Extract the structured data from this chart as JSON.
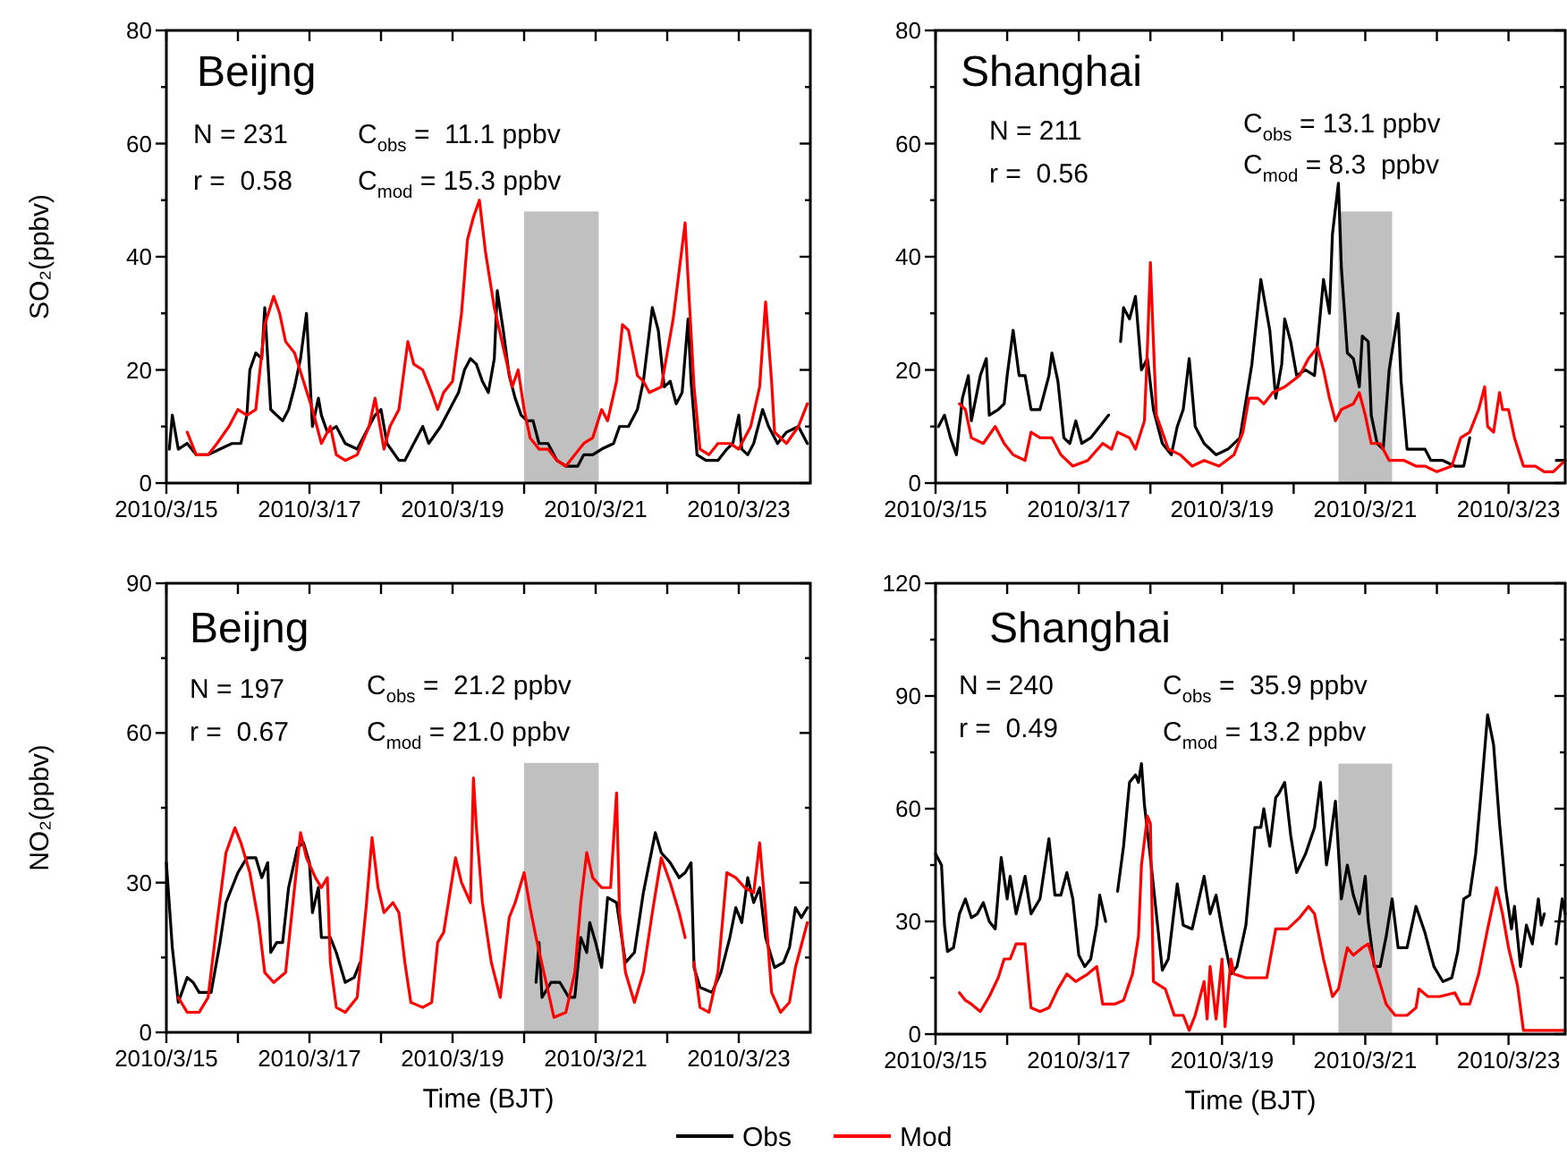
{
  "chart_data": [
    {
      "type": "line",
      "title": "Beijng",
      "ylabel": "SO₂(ppbv)",
      "annotations": [
        "N = 231",
        "r =  0.58",
        "C$_{obs}$ =  11.1 ppbv",
        "C$_{mod}$ = 15.3 ppbv"
      ],
      "xlim": [
        "2010-03-15",
        "2010-03-24"
      ],
      "xticks": [
        {
          "value": "2010-03-15",
          "label": "2010/3/15"
        },
        {
          "value": "2010-03-16",
          "label": null
        },
        {
          "value": "2010-03-17",
          "label": "2010/3/17"
        },
        {
          "value": "2010-03-18",
          "label": null
        },
        {
          "value": "2010-03-19",
          "label": "2010/3/19"
        },
        {
          "value": "2010-03-20",
          "label": null
        },
        {
          "value": "2010-03-21",
          "label": "2010/3/21"
        },
        {
          "value": "2010-03-22",
          "label": null
        },
        {
          "value": "2010-03-23",
          "label": "2010/3/23"
        }
      ],
      "ylim": [
        0,
        80
      ],
      "yticks": [
        0,
        {
          "value": 10,
          "label": null
        },
        20,
        {
          "value": 30,
          "label": null
        },
        40,
        {
          "value": 50,
          "label": null
        },
        60,
        {
          "value": 70,
          "label": null
        },
        80
      ],
      "bands": [
        {
          "axis": "x",
          "from": "2010-03-20T00:00",
          "to": "2010-03-21T01:00",
          "color": "#c0c0c0"
        }
      ],
      "series": [
        {
          "color": "#000000",
          "x": [
            "2010-03-15T01:00",
            "2010-03-15T02:00",
            "2010-03-15T04:00",
            "2010-03-15T07:00",
            "2010-03-15T10:00",
            "2010-03-15T14:00",
            "2010-03-15T18:00",
            "2010-03-15T22:00",
            "2010-03-16T01:00",
            "2010-03-16T03:00",
            "2010-03-16T04:00",
            "2010-03-16T06:00",
            "2010-03-16T08:00",
            "2010-03-16T09:00",
            "2010-03-16T10:00",
            "2010-03-16T11:00",
            "2010-03-16T13:00",
            "2010-03-16T15:00",
            "2010-03-16T17:00",
            "2010-03-16T19:00",
            "2010-03-16T21:00",
            "2010-03-16T23:00",
            "2010-03-17T00:00",
            "2010-03-17T01:00",
            "2010-03-17T03:00",
            "2010-03-17T04:00",
            "2010-03-17T06:00",
            "2010-03-17T09:00",
            "2010-03-17T12:00",
            "2010-03-17T16:00",
            "2010-03-17T19:00",
            "2010-03-17T22:00",
            "2010-03-18T00:00",
            "2010-03-18T02:00",
            "2010-03-18T06:00",
            "2010-03-18T08:00",
            "2010-03-18T10:00",
            "2010-03-18T14:00",
            "2010-03-18T16:00",
            "2010-03-18T20:00",
            "2010-03-18T23:00",
            "2010-03-19T02:00",
            "2010-03-19T04:00",
            "2010-03-19T06:00",
            "2010-03-19T08:00",
            "2010-03-19T10:00",
            "2010-03-19T12:00",
            "2010-03-19T14:00",
            "2010-03-19T15:00",
            "2010-03-19T17:00",
            "2010-03-19T19:00",
            "2010-03-19T21:00",
            "2010-03-19T23:00",
            "2010-03-20T01:00",
            "2010-03-20T03:00",
            "2010-03-20T05:00",
            "2010-03-20T08:00",
            "2010-03-20T11:00",
            "2010-03-20T14:00",
            "2010-03-20T18:00",
            "2010-03-20T20:00",
            "2010-03-20T23:00",
            "2010-03-21T02:00",
            "2010-03-21T06:00",
            "2010-03-21T08:00",
            "2010-03-21T11:00",
            "2010-03-21T14:00",
            "2010-03-21T16:00",
            "2010-03-21T19:00",
            "2010-03-21T21:00",
            "2010-03-21T23:00",
            "2010-03-22T01:00",
            "2010-03-22T03:00",
            "2010-03-22T05:00",
            "2010-03-22T07:00",
            "2010-03-22T08:00",
            "2010-03-22T10:00",
            "2010-03-22T13:00",
            "2010-03-22T17:00",
            "2010-03-22T20:00",
            "2010-03-22T22:00",
            "2010-03-23T00:00",
            "2010-03-23T01:00",
            "2010-03-23T03:00",
            "2010-03-23T05:00",
            "2010-03-23T08:00",
            "2010-03-23T10:00",
            "2010-03-23T13:00",
            "2010-03-23T16:00",
            "2010-03-23T20:00",
            "2010-03-23T23:00"
          ],
          "values": [
            6,
            12,
            6,
            7,
            5,
            5,
            6,
            7,
            7,
            12,
            20,
            23,
            22,
            31,
            22,
            13,
            12,
            11,
            13,
            17,
            22,
            30,
            20,
            10,
            15,
            12,
            9,
            10,
            7,
            6,
            9,
            12,
            13,
            7,
            4,
            4,
            6,
            10,
            7,
            10,
            13,
            16,
            20,
            22,
            21,
            18,
            16,
            22,
            34,
            27,
            19,
            15,
            12,
            11,
            11,
            7,
            7,
            4,
            3,
            3,
            5,
            5,
            6,
            7,
            10,
            10,
            13,
            18,
            31,
            27,
            17,
            18,
            14,
            16,
            29,
            18,
            5,
            4,
            4,
            6,
            7,
            12,
            6,
            5,
            7,
            13,
            10,
            7,
            9,
            10,
            7
          ]
        },
        {
          "color": "#ff0000",
          "x": [
            "2010-03-15T07:00",
            "2010-03-15T10:00",
            "2010-03-15T14:00",
            "2010-03-15T17:00",
            "2010-03-15T21:00",
            "2010-03-16T00:00",
            "2010-03-16T03:00",
            "2010-03-16T06:00",
            "2010-03-16T09:00",
            "2010-03-16T12:00",
            "2010-03-16T14:00",
            "2010-03-16T16:00",
            "2010-03-16T19:00",
            "2010-03-16T22:00",
            "2010-03-17T01:00",
            "2010-03-17T04:00",
            "2010-03-17T07:00",
            "2010-03-17T09:00",
            "2010-03-17T12:00",
            "2010-03-17T16:00",
            "2010-03-17T20:00",
            "2010-03-17T22:00",
            "2010-03-17T23:00",
            "2010-03-18T01:00",
            "2010-03-18T03:00",
            "2010-03-18T06:00",
            "2010-03-18T09:00",
            "2010-03-18T11:00",
            "2010-03-18T14:00",
            "2010-03-18T17:00",
            "2010-03-18T19:00",
            "2010-03-18T21:00",
            "2010-03-19T00:00",
            "2010-03-19T03:00",
            "2010-03-19T05:00",
            "2010-03-19T07:00",
            "2010-03-19T09:00",
            "2010-03-19T11:00",
            "2010-03-19T14:00",
            "2010-03-19T17:00",
            "2010-03-19T20:00",
            "2010-03-19T22:00",
            "2010-03-20T00:00",
            "2010-03-20T02:00",
            "2010-03-20T05:00",
            "2010-03-20T08:00",
            "2010-03-20T11:00",
            "2010-03-20T14:00",
            "2010-03-20T17:00",
            "2010-03-20T20:00",
            "2010-03-20T23:00",
            "2010-03-21T02:00",
            "2010-03-21T04:00",
            "2010-03-21T07:00",
            "2010-03-21T09:00",
            "2010-03-21T11:00",
            "2010-03-21T14:00",
            "2010-03-21T16:00",
            "2010-03-21T18:00",
            "2010-03-21T22:00",
            "2010-03-22T02:00",
            "2010-03-22T06:00",
            "2010-03-22T07:00",
            "2010-03-22T09:00",
            "2010-03-22T11:00",
            "2010-03-22T14:00",
            "2010-03-22T17:00",
            "2010-03-22T21:00",
            "2010-03-23T00:00",
            "2010-03-23T04:00",
            "2010-03-23T07:00",
            "2010-03-23T09:00",
            "2010-03-23T11:00",
            "2010-03-23T12:00",
            "2010-03-23T16:00",
            "2010-03-23T20:00",
            "2010-03-23T23:00"
          ],
          "values": [
            9,
            5,
            5,
            7,
            10,
            13,
            12,
            13,
            28,
            33,
            30,
            25,
            23,
            18,
            13,
            7,
            10,
            5,
            4,
            5,
            10,
            15,
            12,
            6,
            10,
            13,
            25,
            21,
            20,
            16,
            13,
            16,
            18,
            30,
            43,
            47,
            50,
            41,
            31,
            24,
            17,
            20,
            13,
            8,
            6,
            6,
            4,
            3,
            5,
            7,
            8,
            13,
            11,
            18,
            28,
            27,
            19,
            18,
            16,
            17,
            29,
            46,
            36,
            17,
            6,
            5,
            7,
            7,
            6,
            10,
            17,
            32,
            18,
            9,
            7,
            10,
            14
          ]
        }
      ]
    },
    {
      "type": "line",
      "title": "Shanghai",
      "annotations": [
        "N = 211",
        "r =  0.56",
        "C$_{obs}$ = 13.1 ppbv",
        "C$_{mod}$ = 8.3  ppbv"
      ],
      "xlim": [
        "2010-03-15",
        "2010-03-23T19:00"
      ],
      "xticks": [
        {
          "value": "2010-03-15",
          "label": "2010/3/15"
        },
        {
          "value": "2010-03-16",
          "label": null
        },
        {
          "value": "2010-03-17",
          "label": "2010/3/17"
        },
        {
          "value": "2010-03-18",
          "label": null
        },
        {
          "value": "2010-03-19",
          "label": "2010/3/19"
        },
        {
          "value": "2010-03-20",
          "label": null
        },
        {
          "value": "2010-03-21",
          "label": "2010/3/21"
        },
        {
          "value": "2010-03-22",
          "label": null
        },
        {
          "value": "2010-03-23",
          "label": "2010/3/23"
        }
      ],
      "ylim": [
        0,
        80
      ],
      "yticks": [
        0,
        {
          "value": 10,
          "label": null
        },
        20,
        {
          "value": 30,
          "label": null
        },
        40,
        {
          "value": 50,
          "label": null
        },
        60,
        {
          "value": 70,
          "label": null
        },
        80
      ],
      "bands": [
        {
          "axis": "x",
          "from": "2010-03-20T15:00",
          "to": "2010-03-21T09:00",
          "color": "#c0c0c0"
        }
      ],
      "series": [
        {
          "color": "#000000",
          "x": [
            "2010-03-15T01:00",
            "2010-03-15T03:00",
            "2010-03-15T05:00",
            "2010-03-15T07:00",
            "2010-03-15T09:00",
            "2010-03-15T11:00",
            "2010-03-15T12:00",
            "2010-03-15T15:00",
            "2010-03-15T17:00",
            "2010-03-15T18:00",
            "2010-03-15T21:00",
            "2010-03-15T23:00",
            "2010-03-16T00:00",
            "2010-03-16T02:00",
            "2010-03-16T04:00",
            "2010-03-16T06:00",
            "2010-03-16T08:00",
            "2010-03-16T11:00",
            "2010-03-16T14:00",
            "2010-03-16T15:00",
            "2010-03-16T17:00",
            "2010-03-16T19:00",
            "2010-03-16T21:00",
            "2010-03-16T23:00",
            "2010-03-17T01:00",
            "2010-03-17T04:00",
            "2010-03-17T07:00",
            "2010-03-17T10:00",
            "2010-03-17T12:00",
            "2010-03-17T14:00",
            "2010-03-17T15:00",
            "2010-03-17T17:00",
            "2010-03-17T19:00",
            "2010-03-17T21:00",
            "2010-03-17T23:00",
            "2010-03-18T01:00",
            "2010-03-18T04:00",
            "2010-03-18T07:00",
            "2010-03-18T09:00",
            "2010-03-18T11:00",
            "2010-03-18T13:00",
            "2010-03-18T15:00",
            "2010-03-18T18:00",
            "2010-03-18T22:00",
            "2010-03-19T02:00",
            "2010-03-19T06:00",
            "2010-03-19T10:00",
            "2010-03-19T13:00",
            "2010-03-19T16:00",
            "2010-03-19T18:00",
            "2010-03-19T20:00",
            "2010-03-19T21:00",
            "2010-03-19T23:00",
            "2010-03-20T01:00",
            "2010-03-20T04:00",
            "2010-03-20T07:00",
            "2010-03-20T10:00",
            "2010-03-20T12:00",
            "2010-03-20T13:00",
            "2010-03-20T15:00",
            "2010-03-20T16:00",
            "2010-03-20T18:00",
            "2010-03-20T20:00",
            "2010-03-20T22:00",
            "2010-03-20T23:00",
            "2010-03-21T01:00",
            "2010-03-21T02:00",
            "2010-03-21T04:00",
            "2010-03-21T06:00",
            "2010-03-21T08:00",
            "2010-03-21T11:00",
            "2010-03-21T12:00",
            "2010-03-21T14:00",
            "2010-03-21T17:00",
            "2010-03-21T20:00",
            "2010-03-21T22:00",
            "2010-03-22T02:00",
            "2010-03-22T06:00",
            "2010-03-22T09:00",
            "2010-03-22T11:00",
            "2010-03-22T22:00",
            "2010-03-23T16:00",
            "2010-03-23T19:00"
          ],
          "values": [
            10,
            12,
            8,
            5,
            15,
            19,
            11,
            19,
            22,
            12,
            13,
            14,
            19,
            27,
            19,
            19,
            13,
            13,
            19,
            23,
            18,
            8,
            7,
            11,
            7,
            8,
            10,
            12,
            null,
            25,
            31,
            29,
            33,
            20,
            22,
            13,
            7,
            5,
            10,
            13,
            22,
            10,
            7,
            5,
            6,
            8,
            21,
            36,
            27,
            15,
            21,
            29,
            25,
            19,
            20,
            19,
            36,
            30,
            44,
            53,
            38,
            23,
            22,
            17,
            26,
            25,
            12,
            7,
            6,
            20,
            30,
            18,
            6,
            6,
            6,
            4,
            4,
            3,
            3,
            8,
            null,
            4,
            4
          ]
        },
        {
          "color": "#ff0000",
          "x": [
            "2010-03-15T08:00",
            "2010-03-15T10:00",
            "2010-03-15T12:00",
            "2010-03-15T16:00",
            "2010-03-15T20:00",
            "2010-03-15T23:00",
            "2010-03-16T02:00",
            "2010-03-16T06:00",
            "2010-03-16T08:00",
            "2010-03-16T11:00",
            "2010-03-16T15:00",
            "2010-03-16T18:00",
            "2010-03-16T22:00",
            "2010-03-17T03:00",
            "2010-03-17T08:00",
            "2010-03-17T11:00",
            "2010-03-17T13:00",
            "2010-03-17T17:00",
            "2010-03-17T19:00",
            "2010-03-17T22:00",
            "2010-03-17T23:00",
            "2010-03-18T00:00",
            "2010-03-18T01:00",
            "2010-03-18T02:00",
            "2010-03-18T06:00",
            "2010-03-18T10:00",
            "2010-03-18T14:00",
            "2010-03-18T18:00",
            "2010-03-18T23:00",
            "2010-03-19T04:00",
            "2010-03-19T07:00",
            "2010-03-19T09:00",
            "2010-03-19T12:00",
            "2010-03-19T14:00",
            "2010-03-19T17:00",
            "2010-03-19T21:00",
            "2010-03-20T02:00",
            "2010-03-20T05:00",
            "2010-03-20T08:00",
            "2010-03-20T10:00",
            "2010-03-20T12:00",
            "2010-03-20T14:00",
            "2010-03-20T16:00",
            "2010-03-20T20:00",
            "2010-03-20T22:00",
            "2010-03-21T00:00",
            "2010-03-21T02:00",
            "2010-03-21T05:00",
            "2010-03-21T08:00",
            "2010-03-21T13:00",
            "2010-03-21T17:00",
            "2010-03-21T20:00",
            "2010-03-22T00:00",
            "2010-03-22T05:00",
            "2010-03-22T08:00",
            "2010-03-22T11:00",
            "2010-03-22T14:00",
            "2010-03-22T16:00",
            "2010-03-22T17:00",
            "2010-03-22T19:00",
            "2010-03-22T21:00",
            "2010-03-22T22:00",
            "2010-03-23T00:00",
            "2010-03-23T02:00",
            "2010-03-23T05:00",
            "2010-03-23T09:00",
            "2010-03-23T12:00",
            "2010-03-23T15:00",
            "2010-03-23T19:00"
          ],
          "values": [
            14,
            13,
            8,
            7,
            10,
            7,
            5,
            4,
            9,
            8,
            8,
            5,
            3,
            4,
            7,
            6,
            9,
            8,
            6,
            11,
            24,
            39,
            25,
            12,
            6,
            5,
            3,
            4,
            3,
            5,
            9,
            15,
            15,
            14,
            16,
            17,
            19,
            22,
            24,
            20,
            15,
            11,
            13,
            14,
            16,
            12,
            7,
            7,
            4,
            4,
            3,
            3,
            2,
            3,
            8,
            9,
            13,
            17,
            10,
            9,
            16,
            13,
            13,
            8,
            3,
            3,
            2,
            2,
            4
          ]
        }
      ]
    },
    {
      "type": "line",
      "title": "Beijng",
      "ylabel": "NO₂(ppbv)",
      "xlabel": "Time (BJT)",
      "legend": "bottom",
      "annotations": [
        "N = 197",
        "r =  0.67",
        "C$_{obs}$ =  21.2 ppbv",
        "C$_{mod}$ = 21.0 ppbv"
      ],
      "xlim": [
        "2010-03-15",
        "2010-03-24"
      ],
      "xticks": [
        {
          "value": "2010-03-15",
          "label": "2010/3/15"
        },
        {
          "value": "2010-03-16",
          "label": null
        },
        {
          "value": "2010-03-17",
          "label": "2010/3/17"
        },
        {
          "value": "2010-03-18",
          "label": null
        },
        {
          "value": "2010-03-19",
          "label": "2010/3/19"
        },
        {
          "value": "2010-03-20",
          "label": null
        },
        {
          "value": "2010-03-21",
          "label": "2010/3/21"
        },
        {
          "value": "2010-03-22",
          "label": null
        },
        {
          "value": "2010-03-23",
          "label": "2010/3/23"
        }
      ],
      "ylim": [
        0,
        90
      ],
      "yticks": [
        0,
        {
          "value": 15,
          "label": null
        },
        30,
        {
          "value": 45,
          "label": null
        },
        60,
        {
          "value": 75,
          "label": null
        },
        90
      ],
      "bands": [
        {
          "axis": "x",
          "from": "2010-03-20T00:00",
          "to": "2010-03-21T01:00",
          "color": "#c0c0c0"
        }
      ],
      "series": [
        {
          "name": "Obs",
          "color": "#000000",
          "x": [
            "2010-03-15T00:00",
            "2010-03-15T02:00",
            "2010-03-15T04:00",
            "2010-03-15T07:00",
            "2010-03-15T09:00",
            "2010-03-15T11:00",
            "2010-03-15T15:00",
            "2010-03-15T18:00",
            "2010-03-15T20:00",
            "2010-03-15T22:00",
            "2010-03-16T00:00",
            "2010-03-16T03:00",
            "2010-03-16T06:00",
            "2010-03-16T08:00",
            "2010-03-16T10:00",
            "2010-03-16T11:00",
            "2010-03-16T13:00",
            "2010-03-16T15:00",
            "2010-03-16T17:00",
            "2010-03-16T20:00",
            "2010-03-16T22:00",
            "2010-03-17T00:00",
            "2010-03-17T01:00",
            "2010-03-17T03:00",
            "2010-03-17T04:00",
            "2010-03-17T07:00",
            "2010-03-17T09:00",
            "2010-03-17T12:00",
            "2010-03-17T15:00",
            "2010-03-17T17:00",
            "2010-03-18T08:00",
            "2010-03-20T04:00",
            "2010-03-20T05:00",
            "2010-03-20T06:00",
            "2010-03-20T09:00",
            "2010-03-20T12:00",
            "2010-03-20T15:00",
            "2010-03-20T17:00",
            "2010-03-20T19:00",
            "2010-03-20T21:00",
            "2010-03-20T22:00",
            "2010-03-21T00:00",
            "2010-03-21T02:00",
            "2010-03-21T04:00",
            "2010-03-21T07:00",
            "2010-03-21T10:00",
            "2010-03-21T13:00",
            "2010-03-21T16:00",
            "2010-03-21T20:00",
            "2010-03-21T22:00",
            "2010-03-22T01:00",
            "2010-03-22T04:00",
            "2010-03-22T06:00",
            "2010-03-22T08:00",
            "2010-03-22T09:00",
            "2010-03-22T11:00",
            "2010-03-22T15:00",
            "2010-03-22T18:00",
            "2010-03-22T21:00",
            "2010-03-22T23:00",
            "2010-03-23T01:00",
            "2010-03-23T03:00",
            "2010-03-23T05:00",
            "2010-03-23T07:00",
            "2010-03-23T09:00",
            "2010-03-23T12:00",
            "2010-03-23T15:00",
            "2010-03-23T17:00",
            "2010-03-23T19:00",
            "2010-03-23T21:00",
            "2010-03-23T23:00"
          ],
          "values": [
            34,
            17,
            6,
            11,
            10,
            8,
            8,
            18,
            26,
            29,
            32,
            35,
            35,
            31,
            34,
            16,
            18,
            18,
            29,
            37,
            38,
            34,
            24,
            29,
            19,
            19,
            16,
            10,
            11,
            14,
            null,
            10,
            18,
            7,
            10,
            10,
            7,
            7,
            19,
            16,
            22,
            18,
            13,
            27,
            26,
            14,
            16,
            28,
            40,
            36,
            34,
            31,
            32,
            34,
            13,
            9,
            8,
            12,
            19,
            25,
            22,
            31,
            26,
            29,
            19,
            13,
            14,
            17,
            25,
            23,
            25
          ]
        },
        {
          "name": "Mod",
          "color": "#ff0000",
          "x": [
            "2010-03-15T04:00",
            "2010-03-15T07:00",
            "2010-03-15T11:00",
            "2010-03-15T14:00",
            "2010-03-15T17:00",
            "2010-03-15T20:00",
            "2010-03-15T23:00",
            "2010-03-16T01:00",
            "2010-03-16T04:00",
            "2010-03-16T07:00",
            "2010-03-16T09:00",
            "2010-03-16T12:00",
            "2010-03-16T16:00",
            "2010-03-16T19:00",
            "2010-03-16T21:00",
            "2010-03-16T23:00",
            "2010-03-17T02:00",
            "2010-03-17T04:00",
            "2010-03-17T06:00",
            "2010-03-17T07:00",
            "2010-03-17T09:00",
            "2010-03-17T12:00",
            "2010-03-17T16:00",
            "2010-03-17T19:00",
            "2010-03-17T21:00",
            "2010-03-17T23:00",
            "2010-03-18T01:00",
            "2010-03-18T04:00",
            "2010-03-18T06:00",
            "2010-03-18T08:00",
            "2010-03-18T10:00",
            "2010-03-18T14:00",
            "2010-03-18T17:00",
            "2010-03-18T19:00",
            "2010-03-18T21:00",
            "2010-03-19T01:00",
            "2010-03-19T03:00",
            "2010-03-19T06:00",
            "2010-03-19T07:00",
            "2010-03-19T08:00",
            "2010-03-19T10:00",
            "2010-03-19T13:00",
            "2010-03-19T16:00",
            "2010-03-19T19:00",
            "2010-03-19T21:00",
            "2010-03-20T00:00",
            "2010-03-20T02:00",
            "2010-03-20T04:00",
            "2010-03-20T07:00",
            "2010-03-20T10:00",
            "2010-03-20T14:00",
            "2010-03-20T17:00",
            "2010-03-20T19:00",
            "2010-03-20T21:00",
            "2010-03-20T23:00",
            "2010-03-21T02:00",
            "2010-03-21T05:00",
            "2010-03-21T07:00",
            "2010-03-21T08:00",
            "2010-03-21T10:00",
            "2010-03-21T13:00",
            "2010-03-21T16:00",
            "2010-03-21T19:00",
            "2010-03-21T22:00",
            "2010-03-22T01:00",
            "2010-03-22T04:00",
            "2010-03-22T06:00",
            "2010-03-22T08:00",
            "2010-03-22T09:00",
            "2010-03-22T11:00",
            "2010-03-22T14:00",
            "2010-03-22T17:00",
            "2010-03-22T20:00",
            "2010-03-22T23:00",
            "2010-03-23T02:00",
            "2010-03-23T05:00",
            "2010-03-23T07:00",
            "2010-03-23T09:00",
            "2010-03-23T11:00",
            "2010-03-23T14:00",
            "2010-03-23T17:00",
            "2010-03-23T19:00",
            "2010-03-23T23:00"
          ],
          "values": [
            7,
            4,
            4,
            7,
            22,
            36,
            41,
            38,
            32,
            22,
            12,
            10,
            12,
            29,
            40,
            35,
            31,
            29,
            31,
            14,
            5,
            4,
            7,
            25,
            39,
            29,
            24,
            26,
            24,
            14,
            6,
            5,
            6,
            18,
            20,
            35,
            30,
            26,
            51,
            41,
            26,
            14,
            7,
            23,
            26,
            32,
            25,
            19,
            11,
            3,
            4,
            12,
            26,
            36,
            31,
            29,
            29,
            48,
            24,
            12,
            6,
            12,
            24,
            35,
            30,
            24,
            19,
            null,
            14,
            5,
            4,
            12,
            32,
            31,
            29,
            28,
            38,
            24,
            8,
            4,
            6,
            13,
            22
          ]
        }
      ]
    },
    {
      "type": "line",
      "title": "Shanghai",
      "xlabel": "Time (BJT)",
      "annotations": [
        "N = 240",
        "r =  0.49",
        "C$_{obs}$ =  35.9 ppbv",
        "C$_{mod}$ = 13.2 ppbv"
      ],
      "xlim": [
        "2010-03-15",
        "2010-03-23T19:00"
      ],
      "xticks": [
        {
          "value": "2010-03-15",
          "label": "2010/3/15"
        },
        {
          "value": "2010-03-16",
          "label": null
        },
        {
          "value": "2010-03-17",
          "label": "2010/3/17"
        },
        {
          "value": "2010-03-18",
          "label": null
        },
        {
          "value": "2010-03-19",
          "label": "2010/3/19"
        },
        {
          "value": "2010-03-20",
          "label": null
        },
        {
          "value": "2010-03-21",
          "label": "2010/3/21"
        },
        {
          "value": "2010-03-22",
          "label": null
        },
        {
          "value": "2010-03-23",
          "label": "2010/3/23"
        }
      ],
      "ylim": [
        0,
        120
      ],
      "yticks": [
        0,
        {
          "value": 15,
          "label": null
        },
        30,
        {
          "value": 45,
          "label": null
        },
        60,
        {
          "value": 75,
          "label": null
        },
        90,
        {
          "value": 105,
          "label": null
        },
        120
      ],
      "bands": [
        {
          "axis": "x",
          "from": "2010-03-20T15:00",
          "to": "2010-03-21T09:00",
          "color": "#c0c0c0"
        }
      ],
      "series": [
        {
          "color": "#000000",
          "x": [
            "2010-03-15T00:00",
            "2010-03-15T02:00",
            "2010-03-15T03:00",
            "2010-03-15T04:00",
            "2010-03-15T06:00",
            "2010-03-15T08:00",
            "2010-03-15T10:00",
            "2010-03-15T12:00",
            "2010-03-15T14:00",
            "2010-03-15T16:00",
            "2010-03-15T18:00",
            "2010-03-15T20:00",
            "2010-03-15T22:00",
            "2010-03-16T00:00",
            "2010-03-16T01:00",
            "2010-03-16T03:00",
            "2010-03-16T06:00",
            "2010-03-16T08:00",
            "2010-03-16T11:00",
            "2010-03-16T14:00",
            "2010-03-16T16:00",
            "2010-03-16T18:00",
            "2010-03-16T20:00",
            "2010-03-16T22:00",
            "2010-03-17T00:00",
            "2010-03-17T02:00",
            "2010-03-17T04:00",
            "2010-03-17T06:00",
            "2010-03-17T07:00",
            "2010-03-17T09:00",
            "2010-03-17T11:00",
            "2010-03-17T13:00",
            "2010-03-17T15:00",
            "2010-03-17T17:00",
            "2010-03-17T19:00",
            "2010-03-17T20:00",
            "2010-03-17T21:00",
            "2010-03-17T22:00",
            "2010-03-18T00:00",
            "2010-03-18T02:00",
            "2010-03-18T04:00",
            "2010-03-18T06:00",
            "2010-03-18T09:00",
            "2010-03-18T11:00",
            "2010-03-18T14:00",
            "2010-03-18T18:00",
            "2010-03-18T20:00",
            "2010-03-18T22:00",
            "2010-03-19T00:00",
            "2010-03-19T03:00",
            "2010-03-19T05:00",
            "2010-03-19T08:00",
            "2010-03-19T11:00",
            "2010-03-19T13:00",
            "2010-03-19T14:00",
            "2010-03-19T16:00",
            "2010-03-19T18:00",
            "2010-03-19T19:00",
            "2010-03-19T21:00",
            "2010-03-19T23:00",
            "2010-03-20T01:00",
            "2010-03-20T04:00",
            "2010-03-20T07:00",
            "2010-03-20T09:00",
            "2010-03-20T11:00",
            "2010-03-20T12:00",
            "2010-03-20T14:00",
            "2010-03-20T16:00",
            "2010-03-20T18:00",
            "2010-03-20T20:00",
            "2010-03-20T22:00",
            "2010-03-21T00:00",
            "2010-03-21T01:00",
            "2010-03-21T03:00",
            "2010-03-21T05:00",
            "2010-03-21T07:00",
            "2010-03-21T09:00",
            "2010-03-21T11:00",
            "2010-03-21T14:00",
            "2010-03-21T17:00",
            "2010-03-21T20:00",
            "2010-03-21T23:00",
            "2010-03-22T02:00",
            "2010-03-22T05:00",
            "2010-03-22T07:00",
            "2010-03-22T09:00",
            "2010-03-22T11:00",
            "2010-03-22T13:00",
            "2010-03-22T15:00",
            "2010-03-22T17:00",
            "2010-03-22T19:00",
            "2010-03-22T21:00",
            "2010-03-22T23:00",
            "2010-03-23T01:00",
            "2010-03-23T02:00",
            "2010-03-23T04:00",
            "2010-03-23T06:00",
            "2010-03-23T08:00",
            "2010-03-23T10:00",
            "2010-03-23T11:00",
            "2010-03-23T12:00",
            "2010-03-23T14:00",
            "2010-03-23T16:00",
            "2010-03-23T18:00",
            "2010-03-23T19:00"
          ],
          "values": [
            48,
            45,
            29,
            22,
            23,
            32,
            36,
            31,
            32,
            35,
            30,
            28,
            47,
            36,
            42,
            32,
            42,
            32,
            36,
            52,
            37,
            37,
            43,
            36,
            21,
            18,
            20,
            29,
            37,
            30,
            null,
            38,
            50,
            67,
            69,
            67,
            72,
            61,
            47,
            32,
            17,
            20,
            40,
            29,
            28,
            42,
            32,
            37,
            28,
            16,
            18,
            29,
            55,
            55,
            60,
            50,
            63,
            64,
            67,
            53,
            43,
            48,
            55,
            67,
            45,
            50,
            62,
            36,
            45,
            37,
            32,
            42,
            30,
            18,
            18,
            26,
            36,
            23,
            23,
            34,
            27,
            18,
            14,
            15,
            22,
            36,
            37,
            48,
            66,
            85,
            77,
            56,
            39,
            28,
            34,
            18,
            29,
            24,
            36,
            29,
            32,
            null,
            24,
            36,
            32
          ]
        },
        {
          "color": "#ff0000",
          "x": [
            "2010-03-15T08:00",
            "2010-03-15T10:00",
            "2010-03-15T12:00",
            "2010-03-15T15:00",
            "2010-03-15T18:00",
            "2010-03-15T21:00",
            "2010-03-15T23:00",
            "2010-03-16T01:00",
            "2010-03-16T03:00",
            "2010-03-16T06:00",
            "2010-03-16T08:00",
            "2010-03-16T11:00",
            "2010-03-16T14:00",
            "2010-03-16T17:00",
            "2010-03-16T20:00",
            "2010-03-16T23:00",
            "2010-03-17T03:00",
            "2010-03-17T06:00",
            "2010-03-17T08:00",
            "2010-03-17T12:00",
            "2010-03-17T15:00",
            "2010-03-17T18:00",
            "2010-03-17T20:00",
            "2010-03-17T21:00",
            "2010-03-17T23:00",
            "2010-03-18T00:00",
            "2010-03-18T01:00",
            "2010-03-18T03:00",
            "2010-03-18T05:00",
            "2010-03-18T08:00",
            "2010-03-18T11:00",
            "2010-03-18T13:00",
            "2010-03-18T15:00",
            "2010-03-18T18:00",
            "2010-03-18T19:00",
            "2010-03-18T20:00",
            "2010-03-18T22:00",
            "2010-03-19T00:00",
            "2010-03-19T01:00",
            "2010-03-19T03:00",
            "2010-03-19T04:00",
            "2010-03-19T08:00",
            "2010-03-19T12:00",
            "2010-03-19T15:00",
            "2010-03-19T18:00",
            "2010-03-19T22:00",
            "2010-03-20T02:00",
            "2010-03-20T05:00",
            "2010-03-20T07:00",
            "2010-03-20T10:00",
            "2010-03-20T13:00",
            "2010-03-20T15:00",
            "2010-03-20T18:00",
            "2010-03-20T20:00",
            "2010-03-20T23:00",
            "2010-03-21T01:00",
            "2010-03-21T04:00",
            "2010-03-21T07:00",
            "2010-03-21T10:00",
            "2010-03-21T14:00",
            "2010-03-21T17:00",
            "2010-03-21T18:00",
            "2010-03-21T21:00",
            "2010-03-22T01:00",
            "2010-03-22T06:00",
            "2010-03-22T08:00",
            "2010-03-22T11:00",
            "2010-03-22T14:00",
            "2010-03-22T17:00",
            "2010-03-22T20:00",
            "2010-03-22T22:00",
            "2010-03-23T00:00",
            "2010-03-23T03:00",
            "2010-03-23T05:00",
            "2010-03-23T08:00",
            "2010-03-23T12:00",
            "2010-03-23T19:00"
          ],
          "values": [
            11,
            9,
            8,
            6,
            10,
            15,
            20,
            20,
            24,
            24,
            7,
            6,
            7,
            12,
            16,
            14,
            16,
            18,
            8,
            8,
            9,
            16,
            26,
            45,
            58,
            56,
            14,
            13,
            12,
            5,
            5,
            1,
            5,
            14,
            4,
            18,
            4,
            20,
            2,
            20,
            16,
            15,
            15,
            15,
            28,
            28,
            31,
            34,
            32,
            20,
            10,
            12,
            23,
            21,
            23,
            24,
            16,
            8,
            5,
            5,
            7,
            12,
            10,
            10,
            11,
            8,
            8,
            16,
            28,
            39,
            32,
            23,
            13,
            1,
            1,
            1,
            1
          ]
        }
      ]
    }
  ]
}
